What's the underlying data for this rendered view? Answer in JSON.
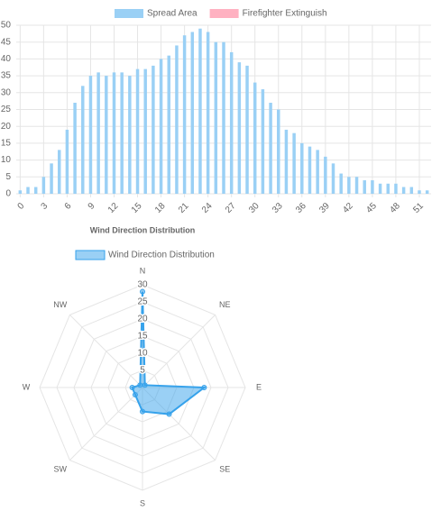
{
  "chart_data": [
    {
      "type": "bar",
      "x": [
        0,
        1,
        2,
        3,
        4,
        5,
        6,
        7,
        8,
        9,
        10,
        11,
        12,
        13,
        14,
        15,
        16,
        17,
        18,
        19,
        20,
        21,
        22,
        23,
        24,
        25,
        26,
        27,
        28,
        29,
        30,
        31,
        32,
        33,
        34,
        35,
        36,
        37,
        38,
        39,
        40,
        41,
        42,
        43,
        44,
        45,
        46,
        47,
        48,
        49,
        50,
        51,
        52
      ],
      "xlim": [
        -0.5,
        52.5
      ],
      "xticks": [
        0,
        3,
        6,
        9,
        12,
        15,
        18,
        21,
        24,
        27,
        30,
        33,
        36,
        39,
        42,
        45,
        48,
        51
      ],
      "ylim": [
        0,
        50
      ],
      "yticks": [
        0,
        5,
        10,
        15,
        20,
        25,
        30,
        35,
        40,
        45,
        50
      ],
      "grid": true,
      "series": [
        {
          "name": "Spread Area",
          "color": "#9ad0f5",
          "values": [
            1,
            2,
            2,
            5,
            9,
            13,
            19,
            27,
            32,
            35,
            36,
            35,
            36,
            36,
            35,
            37,
            37,
            38,
            40,
            41,
            44,
            47,
            48,
            49,
            48,
            45,
            45,
            42,
            39,
            38,
            33,
            31,
            27,
            25,
            19,
            18,
            15,
            14,
            13,
            11,
            9,
            6,
            5,
            5,
            4,
            4,
            3,
            3,
            3,
            2,
            2,
            1,
            1
          ]
        },
        {
          "name": "Firefighter Extinguish",
          "color": "#ffb1c1",
          "values": [
            null,
            null,
            null,
            null,
            null,
            null,
            null,
            null,
            null,
            null,
            null,
            null,
            null,
            null,
            null,
            null,
            null,
            null,
            null,
            null,
            null,
            null,
            null,
            null,
            null,
            null,
            null,
            null,
            null,
            null,
            null,
            null,
            null,
            null,
            null,
            null,
            null,
            null,
            null,
            null,
            null,
            null,
            null,
            null,
            null,
            null,
            null,
            null,
            null,
            null,
            null,
            null,
            null
          ]
        }
      ]
    },
    {
      "type": "radar",
      "title": "Wind Direction Distribution",
      "categories": [
        "N",
        "NE",
        "E",
        "SE",
        "S",
        "SW",
        "W",
        "NW"
      ],
      "rlim": [
        0,
        30
      ],
      "rticks": [
        5,
        10,
        15,
        20,
        25,
        30
      ],
      "series": [
        {
          "name": "Wind Direction Distribution",
          "color": "#36a2eb",
          "fill": "rgba(54,162,235,0.5)",
          "values": [
            28,
            1,
            18,
            11,
            7,
            3,
            3,
            1
          ]
        }
      ]
    }
  ]
}
